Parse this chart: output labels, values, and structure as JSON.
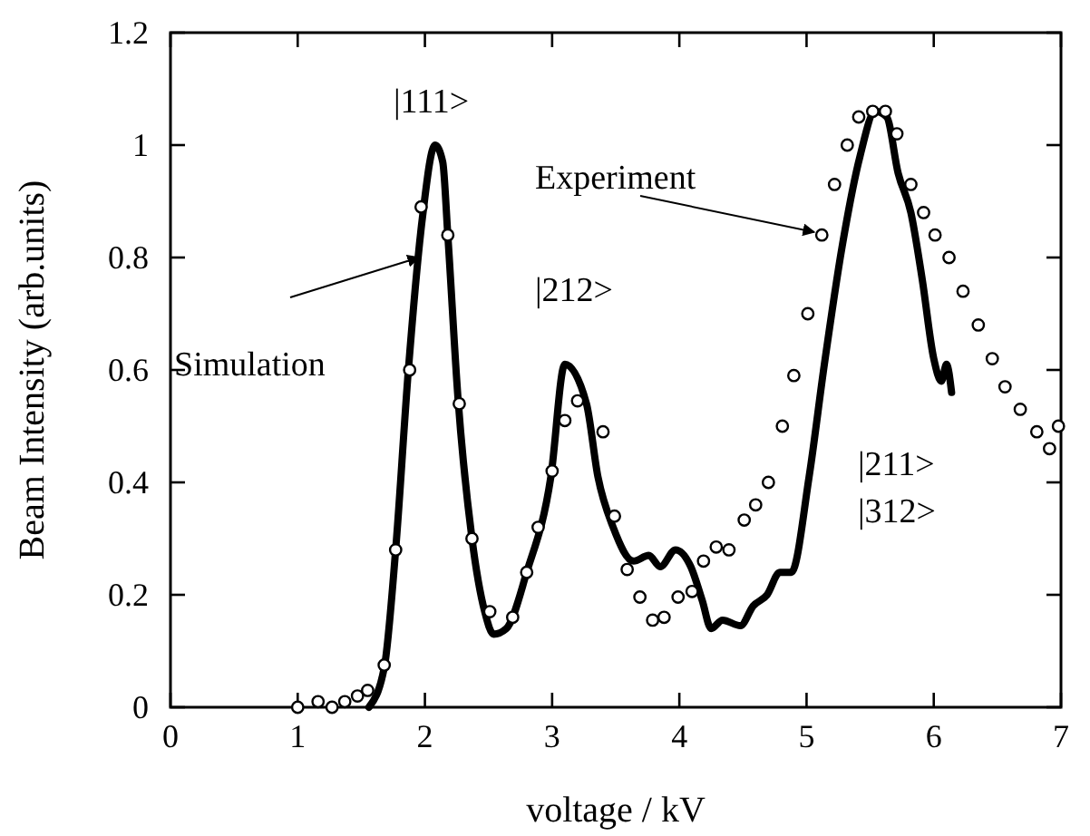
{
  "chart_data": {
    "type": "line",
    "xlabel": "voltage / kV",
    "ylabel": "Beam Intensity (arb.units)",
    "xlim": [
      0,
      7
    ],
    "xticks": [
      0,
      1,
      2,
      3,
      4,
      5,
      6,
      7
    ],
    "ylim": [
      0,
      1.2
    ],
    "yticks": [
      0,
      0.2,
      0.4,
      0.6,
      0.8,
      1,
      1.2
    ],
    "grid": false,
    "series": [
      {
        "name": "Simulation",
        "color": "#000000",
        "marker": "none",
        "line_style": "solid",
        "x": [
          1.56,
          1.68,
          1.77,
          1.87,
          1.98,
          2.08,
          2.14,
          2.18,
          2.26,
          2.37,
          2.47,
          2.54,
          2.64,
          2.8,
          2.99,
          3.1,
          3.27,
          3.36,
          3.48,
          3.64,
          3.76,
          3.85,
          3.97,
          4.09,
          4.18,
          4.25,
          4.34,
          4.48,
          4.58,
          4.69,
          4.79,
          4.88,
          5.02,
          5.14,
          5.28,
          5.42,
          5.54,
          5.63,
          5.72,
          5.82,
          5.91,
          6.0,
          6.06,
          6.1,
          6.14
        ],
        "values": [
          0,
          0.07,
          0.28,
          0.6,
          0.87,
          1.0,
          0.97,
          0.84,
          0.55,
          0.3,
          0.17,
          0.13,
          0.14,
          0.24,
          0.41,
          0.61,
          0.54,
          0.41,
          0.32,
          0.26,
          0.27,
          0.25,
          0.28,
          0.25,
          0.19,
          0.14,
          0.155,
          0.145,
          0.18,
          0.2,
          0.24,
          0.24,
          0.41,
          0.61,
          0.82,
          0.98,
          1.06,
          1.05,
          0.95,
          0.88,
          0.76,
          0.62,
          0.58,
          0.61,
          0.56
        ]
      },
      {
        "name": "Experiment",
        "type": "scatter",
        "color": "#000000",
        "marker": "circle",
        "x": [
          1.0,
          1.16,
          1.27,
          1.37,
          1.47,
          1.55,
          1.68,
          1.77,
          1.88,
          1.97,
          2.18,
          2.27,
          2.37,
          2.51,
          2.69,
          2.8,
          2.89,
          3.0,
          3.1,
          3.2,
          3.4,
          3.49,
          3.59,
          3.69,
          3.79,
          3.88,
          3.99,
          4.1,
          4.19,
          4.29,
          4.39,
          4.51,
          4.6,
          4.7,
          4.81,
          4.9,
          5.01,
          5.12,
          5.22,
          5.32,
          5.41,
          5.52,
          5.62,
          5.71,
          5.82,
          5.92,
          6.01,
          6.12,
          6.23,
          6.35,
          6.46,
          6.56,
          6.68,
          6.81,
          6.91,
          6.98
        ],
        "values": [
          0,
          0.01,
          0,
          0.01,
          0.02,
          0.03,
          0.075,
          0.28,
          0.6,
          0.89,
          0.84,
          0.54,
          0.3,
          0.17,
          0.16,
          0.24,
          0.32,
          0.42,
          0.51,
          0.545,
          0.49,
          0.34,
          0.245,
          0.196,
          0.155,
          0.16,
          0.196,
          0.206,
          0.26,
          0.285,
          0.28,
          0.333,
          0.36,
          0.4,
          0.5,
          0.59,
          0.7,
          0.84,
          0.93,
          1.0,
          1.05,
          1.06,
          1.06,
          1.02,
          0.93,
          0.88,
          0.84,
          0.8,
          0.74,
          0.68,
          0.62,
          0.57,
          0.53,
          0.49,
          0.46,
          0.5
        ]
      }
    ],
    "annotations": [
      "|111>",
      "|212>",
      "|211>",
      "|312>"
    ]
  }
}
